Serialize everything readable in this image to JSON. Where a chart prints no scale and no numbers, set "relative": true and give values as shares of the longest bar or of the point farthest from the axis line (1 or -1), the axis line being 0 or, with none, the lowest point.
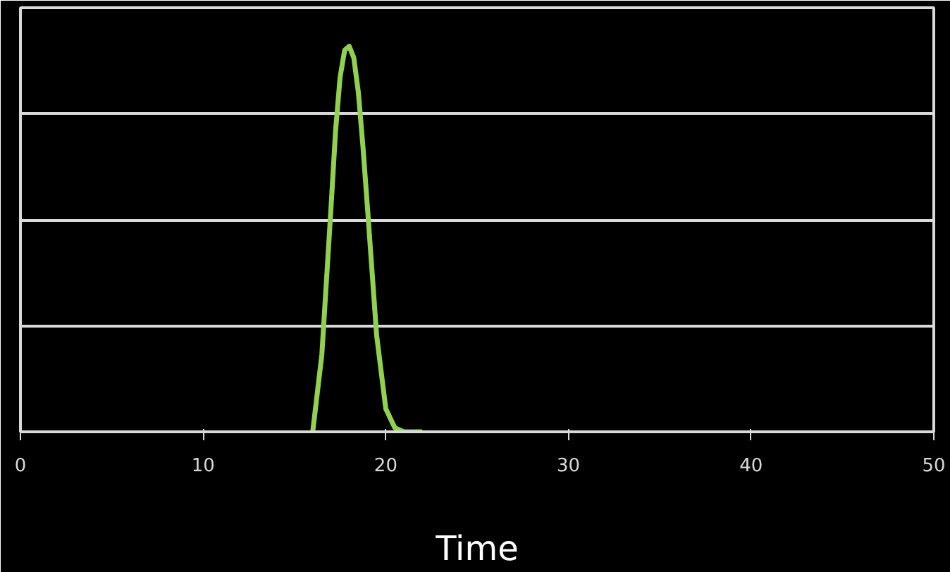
{
  "chart_data": {
    "type": "line",
    "relative": true,
    "xlabel": "Time",
    "xlim": [
      0,
      50
    ],
    "xticks": [
      0,
      10,
      20,
      30,
      40,
      50
    ],
    "grid": "y",
    "marker": "none",
    "line_style": "solid",
    "series": [
      {
        "color": "#92d050",
        "x": [
          16.0,
          16.5,
          17.0,
          17.25,
          17.5,
          17.75,
          18.0,
          18.25,
          18.5,
          18.75,
          19.0,
          19.5,
          20.0,
          20.5,
          21.0,
          22.0
        ],
        "values": [
          0,
          0.2,
          0.58,
          0.78,
          0.92,
          0.99,
          1.0,
          0.97,
          0.88,
          0.74,
          0.58,
          0.25,
          0.06,
          0.01,
          0,
          0
        ]
      }
    ]
  }
}
